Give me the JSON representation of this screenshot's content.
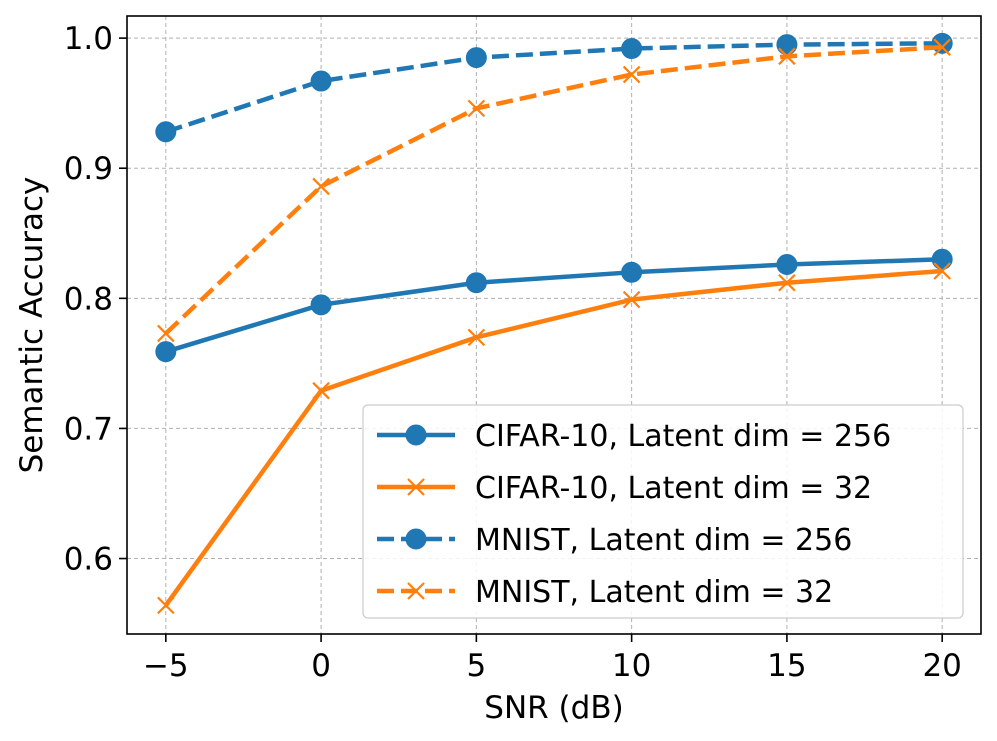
{
  "chart_data": {
    "type": "line",
    "title": "",
    "xlabel": "SNR (dB)",
    "ylabel": "Semantic Accuracy",
    "x": [
      -5,
      0,
      5,
      10,
      15,
      20
    ],
    "xticks": [
      -5,
      0,
      5,
      10,
      15,
      20
    ],
    "xtick_labels": [
      "−5",
      "0",
      "5",
      "10",
      "15",
      "20"
    ],
    "yticks": [
      0.6,
      0.7,
      0.8,
      0.9,
      1.0
    ],
    "ytick_labels": [
      "0.6",
      "0.7",
      "0.8",
      "0.9",
      "1.0"
    ],
    "xlim": [
      -6.25,
      21.25
    ],
    "ylim": [
      0.542,
      1.017
    ],
    "grid": true,
    "legend_position": "lower-right",
    "series": [
      {
        "name": "CIFAR-10, Latent dim = 256",
        "values": [
          0.759,
          0.795,
          0.812,
          0.82,
          0.826,
          0.83
        ],
        "color": "#1f77b4",
        "linestyle": "solid",
        "marker": "circle"
      },
      {
        "name": "CIFAR-10, Latent dim = 32",
        "values": [
          0.564,
          0.729,
          0.77,
          0.799,
          0.812,
          0.821
        ],
        "color": "#ff7f0e",
        "linestyle": "solid",
        "marker": "x"
      },
      {
        "name": "MNIST, Latent dim = 256",
        "values": [
          0.928,
          0.967,
          0.985,
          0.992,
          0.995,
          0.996
        ],
        "color": "#1f77b4",
        "linestyle": "dashed",
        "marker": "circle"
      },
      {
        "name": "MNIST, Latent dim = 32",
        "values": [
          0.773,
          0.886,
          0.946,
          0.972,
          0.986,
          0.993
        ],
        "color": "#ff7f0e",
        "linestyle": "dashed",
        "marker": "x"
      }
    ]
  }
}
